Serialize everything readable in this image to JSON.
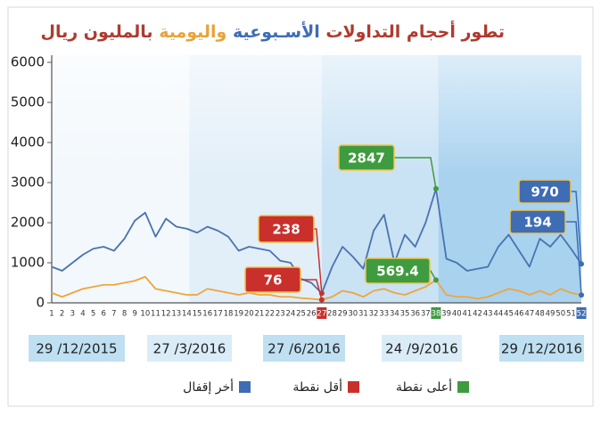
{
  "chart_data": {
    "type": "line",
    "title_parts": [
      {
        "text": "تطور أحجام التداولات",
        "color": "#b03a2e"
      },
      {
        "text": "الأسـبوعية",
        "color": "#3e6db5"
      },
      {
        "text": "واليومية",
        "color": "#e8a33c"
      },
      {
        "text": "بالمليون ريال",
        "color": "#b03a2e"
      }
    ],
    "x": [
      1,
      2,
      3,
      4,
      5,
      6,
      7,
      8,
      9,
      10,
      11,
      12,
      13,
      14,
      15,
      16,
      17,
      18,
      19,
      20,
      21,
      22,
      23,
      24,
      25,
      26,
      27,
      28,
      29,
      30,
      31,
      32,
      33,
      34,
      35,
      36,
      37,
      38,
      39,
      40,
      41,
      42,
      43,
      44,
      45,
      46,
      47,
      48,
      49,
      50,
      51,
      52
    ],
    "xlim": [
      1,
      52
    ],
    "ylim": [
      0,
      6000
    ],
    "yticks": [
      0,
      1000,
      2000,
      3000,
      4000,
      5000,
      6000
    ],
    "series": [
      {
        "color": "#4a72b0",
        "values": [
          900,
          800,
          1000,
          1200,
          1350,
          1400,
          1300,
          1600,
          2050,
          2250,
          1650,
          2100,
          1900,
          1850,
          1750,
          1900,
          1800,
          1650,
          1300,
          1400,
          1350,
          1300,
          1050,
          1000,
          600,
          500,
          238,
          900,
          1400,
          1150,
          850,
          1800,
          2200,
          1000,
          1700,
          1400,
          2000,
          2847,
          1100,
          1000,
          800,
          850,
          900,
          1400,
          1700,
          1300,
          900,
          1600,
          1400,
          1700,
          1350,
          970
        ]
      },
      {
        "color": "#f0a53a",
        "values": [
          250,
          150,
          250,
          350,
          400,
          450,
          450,
          500,
          550,
          650,
          350,
          300,
          250,
          200,
          200,
          350,
          300,
          250,
          200,
          250,
          200,
          200,
          150,
          150,
          120,
          100,
          76,
          150,
          300,
          250,
          150,
          300,
          350,
          250,
          200,
          300,
          400,
          569.4,
          200,
          150,
          150,
          100,
          150,
          250,
          350,
          300,
          200,
          300,
          200,
          350,
          250,
          194
        ]
      }
    ],
    "annotations": [
      {
        "x": 27,
        "value": 238,
        "label": "238",
        "color": "#c9302c"
      },
      {
        "x": 27,
        "value": 76,
        "label": "76",
        "color": "#c9302c"
      },
      {
        "x": 38,
        "value": 2847,
        "label": "2847",
        "color": "#3f9b3f"
      },
      {
        "x": 38,
        "value": 569.4,
        "label": "569.4",
        "color": "#3f9b3f"
      },
      {
        "x": 52,
        "value": 970,
        "label": "970",
        "color": "#3e6db5"
      },
      {
        "x": 52,
        "value": 194,
        "label": "194",
        "color": "#3e6db5"
      }
    ],
    "date_labels": [
      "29 /12/2015",
      "27 /3/2016",
      "27 /6/2016",
      "24 /9/2016",
      "29 /12/2016"
    ],
    "legend": [
      {
        "label": "أخر إقفال",
        "color": "#3e6db5"
      },
      {
        "label": "أقل نقطة",
        "color": "#c9302c"
      },
      {
        "label": "أعلى نقطة",
        "color": "#3f9b3f"
      }
    ]
  }
}
